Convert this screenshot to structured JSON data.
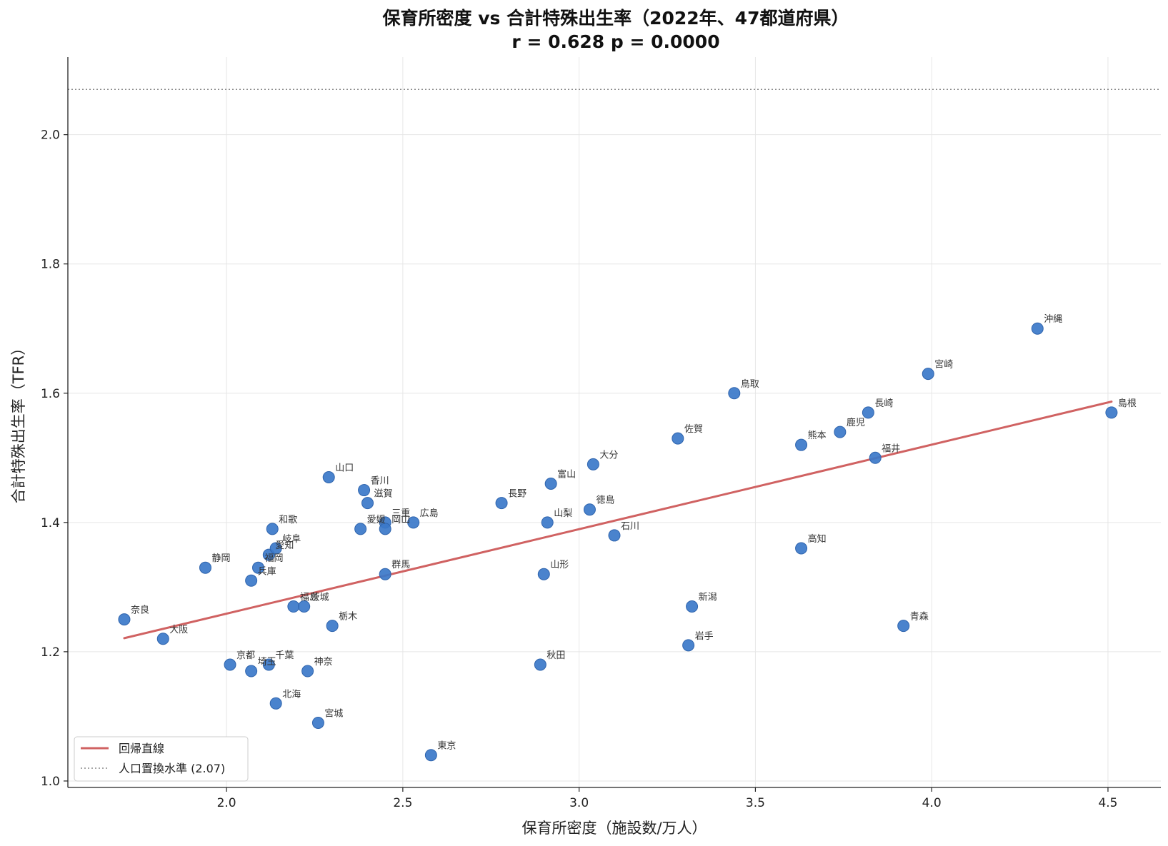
{
  "chart_data": {
    "type": "scatter",
    "title": "保育所密度 vs 合計特殊出生率（2022年、47都道府県）",
    "subtitle": "r = 0.628  p = 0.0000",
    "xlabel": "保育所密度（施設数/万人）",
    "ylabel": "合計特殊出生率（TFR）",
    "xlim": [
      1.55,
      4.65
    ],
    "ylim": [
      0.99,
      2.12
    ],
    "xticks": [
      "2.0",
      "2.5",
      "3.0",
      "3.5",
      "4.0",
      "4.5"
    ],
    "yticks": [
      "1.0",
      "1.2",
      "1.4",
      "1.6",
      "1.8",
      "2.0"
    ],
    "grid": true,
    "legend_position": "bottom-left",
    "colors": {
      "points": "#3b78c9",
      "regression": "#d06262",
      "reference": "#888888"
    },
    "reference_line": {
      "label": "人口置換水準 (2.07)",
      "y": 2.07
    },
    "regression": {
      "label": "回帰直線",
      "x": [
        1.71,
        4.51
      ],
      "y": [
        1.221,
        1.587
      ]
    },
    "points": [
      {
        "name": "奈良",
        "x": 1.71,
        "y": 1.25
      },
      {
        "name": "大阪",
        "x": 1.82,
        "y": 1.22
      },
      {
        "name": "静岡",
        "x": 1.94,
        "y": 1.33
      },
      {
        "name": "京都",
        "x": 2.01,
        "y": 1.18
      },
      {
        "name": "兵庫",
        "x": 2.07,
        "y": 1.31
      },
      {
        "name": "埼玉",
        "x": 2.07,
        "y": 1.17
      },
      {
        "name": "福岡",
        "x": 2.09,
        "y": 1.33
      },
      {
        "name": "愛知",
        "x": 2.12,
        "y": 1.35
      },
      {
        "name": "千葉",
        "x": 2.12,
        "y": 1.18
      },
      {
        "name": "和歌",
        "x": 2.13,
        "y": 1.39
      },
      {
        "name": "岐阜",
        "x": 2.14,
        "y": 1.36
      },
      {
        "name": "北海",
        "x": 2.14,
        "y": 1.12
      },
      {
        "name": "福島",
        "x": 2.19,
        "y": 1.27
      },
      {
        "name": "茨城",
        "x": 2.22,
        "y": 1.27
      },
      {
        "name": "神奈",
        "x": 2.23,
        "y": 1.17
      },
      {
        "name": "宮城",
        "x": 2.26,
        "y": 1.09
      },
      {
        "name": "山口",
        "x": 2.29,
        "y": 1.47
      },
      {
        "name": "栃木",
        "x": 2.3,
        "y": 1.24
      },
      {
        "name": "愛媛",
        "x": 2.38,
        "y": 1.39
      },
      {
        "name": "香川",
        "x": 2.39,
        "y": 1.45
      },
      {
        "name": "滋賀",
        "x": 2.4,
        "y": 1.43
      },
      {
        "name": "群馬",
        "x": 2.45,
        "y": 1.32
      },
      {
        "name": "三重",
        "x": 2.45,
        "y": 1.4
      },
      {
        "name": "岡山",
        "x": 2.45,
        "y": 1.39
      },
      {
        "name": "広島",
        "x": 2.53,
        "y": 1.4
      },
      {
        "name": "東京",
        "x": 2.58,
        "y": 1.04
      },
      {
        "name": "長野",
        "x": 2.78,
        "y": 1.43
      },
      {
        "name": "秋田",
        "x": 2.89,
        "y": 1.18
      },
      {
        "name": "山形",
        "x": 2.9,
        "y": 1.32
      },
      {
        "name": "山梨",
        "x": 2.91,
        "y": 1.4
      },
      {
        "name": "富山",
        "x": 2.92,
        "y": 1.46
      },
      {
        "name": "徳島",
        "x": 3.03,
        "y": 1.42
      },
      {
        "name": "大分",
        "x": 3.04,
        "y": 1.49
      },
      {
        "name": "石川",
        "x": 3.1,
        "y": 1.38
      },
      {
        "name": "佐賀",
        "x": 3.28,
        "y": 1.53
      },
      {
        "name": "岩手",
        "x": 3.31,
        "y": 1.21
      },
      {
        "name": "新潟",
        "x": 3.32,
        "y": 1.27
      },
      {
        "name": "鳥取",
        "x": 3.44,
        "y": 1.6
      },
      {
        "name": "高知",
        "x": 3.63,
        "y": 1.36
      },
      {
        "name": "熊本",
        "x": 3.63,
        "y": 1.52
      },
      {
        "name": "鹿児",
        "x": 3.74,
        "y": 1.54
      },
      {
        "name": "長崎",
        "x": 3.82,
        "y": 1.57
      },
      {
        "name": "福井",
        "x": 3.84,
        "y": 1.5
      },
      {
        "name": "青森",
        "x": 3.92,
        "y": 1.24
      },
      {
        "name": "宮崎",
        "x": 3.99,
        "y": 1.63
      },
      {
        "name": "沖縄",
        "x": 4.3,
        "y": 1.7
      },
      {
        "name": "島根",
        "x": 4.51,
        "y": 1.57
      }
    ]
  }
}
